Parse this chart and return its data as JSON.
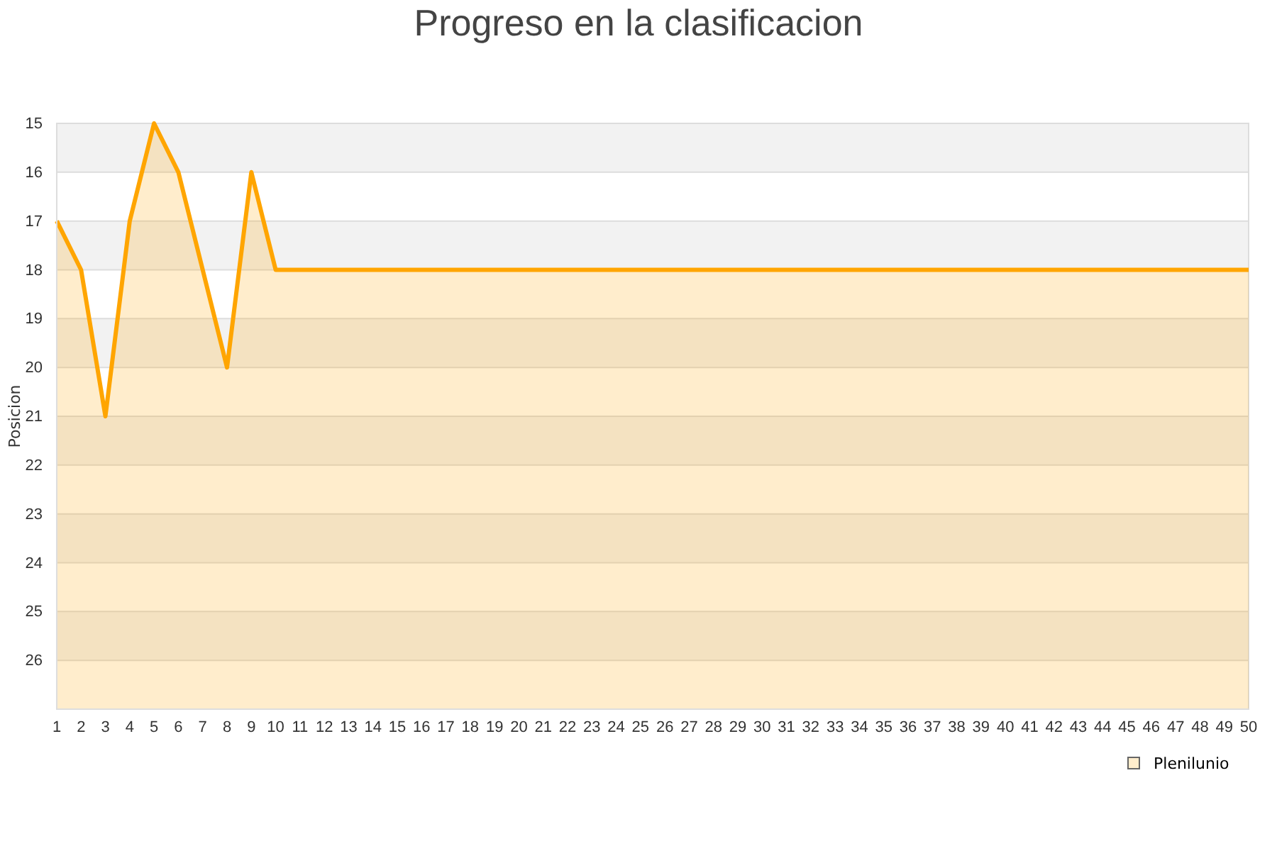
{
  "chart_data": {
    "type": "line",
    "title": "Progreso en la clasificacion",
    "ylabel": "Posicion",
    "x": [
      1,
      2,
      3,
      4,
      5,
      6,
      7,
      8,
      9,
      10,
      11,
      12,
      13,
      14,
      15,
      16,
      17,
      18,
      19,
      20,
      21,
      22,
      23,
      24,
      25,
      26,
      27,
      28,
      29,
      30,
      31,
      32,
      33,
      34,
      35,
      36,
      37,
      38,
      39,
      40,
      41,
      42,
      43,
      44,
      45,
      46,
      47,
      48,
      49,
      50
    ],
    "series": [
      {
        "name": "Plenilunio",
        "color": "#ffa500",
        "values": [
          17,
          18,
          21,
          17,
          15,
          16,
          18,
          20,
          16,
          18,
          18,
          18,
          18,
          18,
          18,
          18,
          18,
          18,
          18,
          18,
          18,
          18,
          18,
          18,
          18,
          18,
          18,
          18,
          18,
          18,
          18,
          18,
          18,
          18,
          18,
          18,
          18,
          18,
          18,
          18,
          18,
          18,
          18,
          18,
          18,
          18,
          18,
          18,
          18,
          18
        ],
        "upper": [
          17,
          18,
          21,
          17,
          15,
          16,
          18,
          20,
          16,
          18,
          18,
          18,
          18,
          18,
          18,
          18,
          18,
          18,
          18,
          18,
          18,
          18,
          18,
          18,
          18,
          18,
          18,
          18,
          18,
          18,
          18,
          18,
          18,
          18,
          18,
          18,
          18,
          18,
          18,
          18,
          18,
          18,
          18,
          18,
          18,
          18,
          18,
          18,
          18,
          18
        ],
        "lower": [
          27,
          27,
          27,
          27,
          27,
          27,
          27,
          27,
          27,
          27,
          27,
          27,
          27,
          27,
          27,
          27,
          27,
          27,
          27,
          27,
          27,
          27,
          27,
          27,
          27,
          27,
          27,
          27,
          27,
          27,
          27,
          27,
          27,
          27,
          27,
          27,
          27,
          27,
          27,
          27,
          27,
          27,
          27,
          27,
          27,
          27,
          27,
          27,
          27,
          27
        ]
      }
    ],
    "xlim": [
      1,
      50
    ],
    "xticks": [
      1,
      2,
      3,
      4,
      5,
      6,
      7,
      8,
      9,
      10,
      11,
      12,
      13,
      14,
      15,
      16,
      17,
      18,
      19,
      20,
      21,
      22,
      23,
      24,
      25,
      26,
      27,
      28,
      29,
      30,
      31,
      32,
      33,
      34,
      35,
      36,
      37,
      38,
      39,
      40,
      41,
      42,
      43,
      44,
      45,
      46,
      47,
      48,
      49,
      50
    ],
    "ylim": [
      27,
      15
    ],
    "yticks": [
      15,
      16,
      17,
      18,
      19,
      20,
      21,
      22,
      23,
      24,
      25,
      26
    ],
    "grid": "y",
    "legend": "bottom right",
    "marker": "none",
    "line_style": "solid"
  }
}
